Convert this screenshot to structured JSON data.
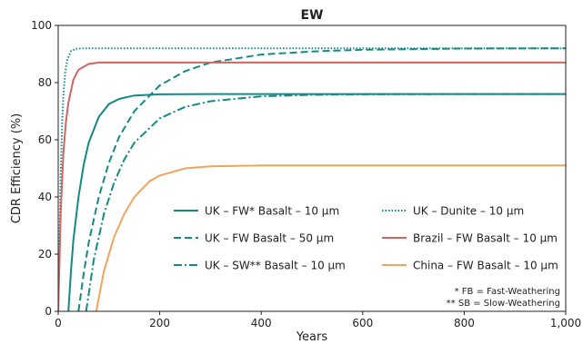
{
  "chart_data": {
    "type": "line",
    "title": "EW",
    "xlabel": "Years",
    "ylabel": "CDR Efficiency (%)",
    "xlim": [
      0,
      1000
    ],
    "ylim": [
      0,
      100
    ],
    "xticks": [
      0,
      200,
      400,
      600,
      800,
      1000
    ],
    "xtick_labels": [
      "0",
      "200",
      "400",
      "600",
      "800",
      "1,000"
    ],
    "yticks": [
      0,
      20,
      40,
      60,
      80,
      100
    ],
    "ytick_labels": [
      "0",
      "20",
      "40",
      "60",
      "80",
      "100"
    ],
    "grid": false,
    "legend_position": "lower-center",
    "series": [
      {
        "name": "UK – FW* Basalt – 10 µm",
        "color": "#138a85",
        "dash": "solid",
        "plateau": 76,
        "x": [
          20,
          25,
          30,
          40,
          50,
          60,
          80,
          100,
          120,
          150,
          200,
          300,
          500,
          1000
        ],
        "y": [
          0,
          14,
          25,
          40,
          51,
          59,
          68,
          72.5,
          74.3,
          75.5,
          75.9,
          76,
          76,
          76
        ]
      },
      {
        "name": "UK – Dunite – 10 µm",
        "color": "#138a85",
        "dash": "dotted",
        "plateau": 92,
        "x": [
          0,
          3,
          5,
          8,
          10,
          14,
          18,
          25,
          35,
          50,
          100,
          1000
        ],
        "y": [
          0,
          30,
          48,
          67,
          75,
          84,
          88,
          91,
          91.8,
          92,
          92,
          92
        ]
      },
      {
        "name": "UK – FW Basalt – 50 µm",
        "color": "#138a85",
        "dash": "dashed",
        "plateau": 92,
        "x": [
          40,
          50,
          60,
          80,
          100,
          120,
          150,
          200,
          250,
          300,
          400,
          500,
          600,
          800,
          1000
        ],
        "y": [
          0,
          13,
          24,
          40,
          52,
          61,
          70,
          79,
          84,
          87,
          89.8,
          90.9,
          91.5,
          91.9,
          92
        ]
      },
      {
        "name": "Brazil – FW Basalt – 10 µm",
        "color": "#d06464",
        "dash": "solid",
        "plateau": 87,
        "x": [
          0,
          5,
          10,
          15,
          20,
          30,
          40,
          60,
          80,
          100,
          150,
          1000
        ],
        "y": [
          0,
          35,
          55,
          66,
          73,
          81,
          84.5,
          86.5,
          87,
          87,
          87,
          87
        ]
      },
      {
        "name": "UK – SW** Basalt – 10 µm",
        "color": "#138a85",
        "dash": "dashdot",
        "plateau": 76,
        "x": [
          55,
          70,
          90,
          110,
          130,
          150,
          200,
          250,
          300,
          400,
          500,
          600,
          800,
          1000
        ],
        "y": [
          0,
          18,
          34,
          45,
          53,
          59,
          67.5,
          71.5,
          73.5,
          75.2,
          75.7,
          75.9,
          76,
          76
        ]
      },
      {
        "name": "China – FW Basalt – 10 µm",
        "color": "#f2a35e",
        "dash": "solid",
        "plateau": 51,
        "x": [
          75,
          90,
          110,
          130,
          150,
          180,
          200,
          250,
          300,
          400,
          500,
          1000
        ],
        "y": [
          0,
          14,
          26,
          34,
          40,
          45.5,
          47.5,
          50,
          50.7,
          51,
          51,
          51
        ]
      }
    ],
    "annotations": [
      "* FB = Fast-Weathering",
      "** SB = Slow-Weathering"
    ]
  }
}
